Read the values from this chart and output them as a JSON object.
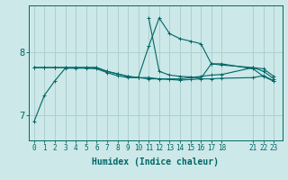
{
  "background_color": "#cce8e8",
  "grid_color": "#aacccc",
  "line_color": "#006666",
  "xlabel": "Humidex (Indice chaleur)",
  "xlabel_fontsize": 7,
  "ytick_fontsize": 7.5,
  "xtick_fontsize": 5.5,
  "xticks": [
    0,
    1,
    2,
    3,
    4,
    5,
    6,
    7,
    8,
    9,
    10,
    11,
    12,
    13,
    14,
    15,
    16,
    17,
    18,
    21,
    22,
    23
  ],
  "xtick_labels": [
    "0",
    "1",
    "2",
    "3",
    "4",
    "5",
    "6",
    "7",
    "8",
    "9",
    "10",
    "11",
    "12",
    "13",
    "14",
    "15",
    "16",
    "17",
    "18",
    "21",
    "22",
    "23"
  ],
  "ylim": [
    6.6,
    8.75
  ],
  "yticks": [
    7,
    8
  ],
  "xlim": [
    -0.5,
    23.8
  ],
  "series": [
    {
      "x": [
        0,
        1,
        2,
        3,
        4,
        5,
        6,
        7,
        8,
        9,
        10,
        11,
        12,
        13,
        14,
        15,
        16,
        17,
        18,
        21,
        22,
        23
      ],
      "y": [
        6.9,
        7.32,
        7.55,
        7.75,
        7.75,
        7.75,
        7.74,
        7.68,
        7.63,
        7.6,
        7.6,
        7.6,
        7.58,
        7.57,
        7.56,
        7.57,
        7.58,
        7.58,
        7.59,
        7.6,
        7.63,
        7.55
      ]
    },
    {
      "x": [
        0,
        1,
        2,
        3,
        4,
        5,
        6,
        7,
        8,
        9,
        10,
        11,
        12,
        13,
        14,
        15,
        16,
        17,
        18,
        21,
        22,
        23
      ],
      "y": [
        7.76,
        7.76,
        7.76,
        7.76,
        7.76,
        7.76,
        7.76,
        7.7,
        7.66,
        7.62,
        7.6,
        7.58,
        7.58,
        7.58,
        7.58,
        7.6,
        7.62,
        7.64,
        7.65,
        7.76,
        7.74,
        7.62
      ]
    },
    {
      "x": [
        0,
        1,
        2,
        3,
        4,
        5,
        6,
        7,
        8,
        9,
        10,
        11,
        12,
        13,
        14,
        15,
        16,
        17,
        18,
        21,
        22,
        23
      ],
      "y": [
        7.76,
        7.76,
        7.76,
        7.76,
        7.76,
        7.76,
        7.76,
        7.7,
        7.66,
        7.62,
        7.6,
        8.1,
        8.55,
        8.3,
        8.22,
        8.18,
        8.14,
        7.82,
        7.8,
        7.76,
        7.7,
        7.58
      ]
    },
    {
      "x": [
        11,
        12,
        13,
        14,
        15,
        16,
        17,
        18,
        21,
        22,
        23
      ],
      "y": [
        8.55,
        7.7,
        7.64,
        7.62,
        7.61,
        7.59,
        7.82,
        7.82,
        7.74,
        7.62,
        7.54
      ]
    }
  ]
}
